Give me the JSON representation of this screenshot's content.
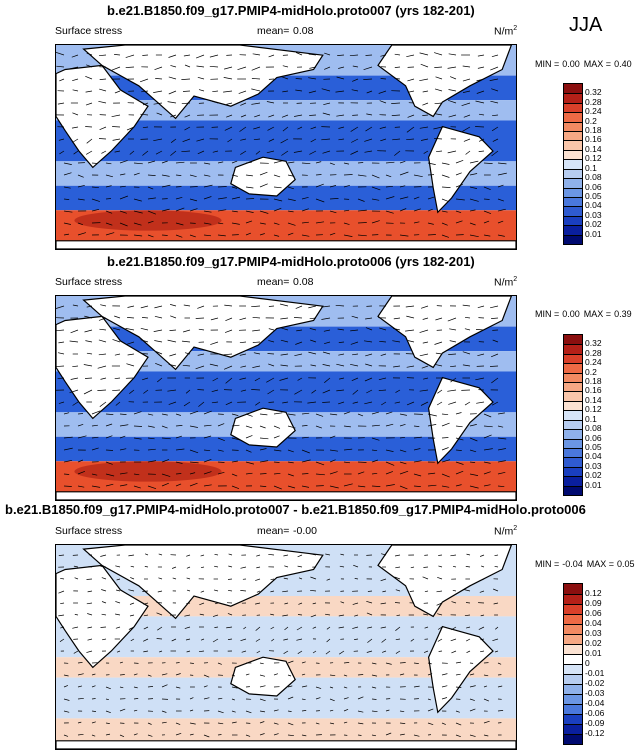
{
  "season": "JJA",
  "panels": [
    {
      "title": "b.e21.B1850.f09_g17.PMIP4-midHolo.proto007 (yrs 182-201)",
      "variable": "Surface stress",
      "mean_label": "mean=",
      "mean_value": "0.08",
      "units_base": "N/m",
      "units_exp": "2",
      "min_label": "MIN =",
      "min_value": "0.00",
      "max_label": "MAX =",
      "max_value": "0.40",
      "levels": [
        "0.32",
        "0.28",
        "0.24",
        "0.2",
        "0.18",
        "0.16",
        "0.14",
        "0.12",
        "0.1",
        "0.08",
        "0.06",
        "0.05",
        "0.04",
        "0.03",
        "0.02",
        "0.01"
      ],
      "colors": [
        "#8b0f0f",
        "#b42018",
        "#d9402a",
        "#ee6a45",
        "#f28a62",
        "#f6a884",
        "#f9c6aa",
        "#fbe2d2",
        "#d6e4f7",
        "#b7cdf0",
        "#8fb1ea",
        "#6b96e4",
        "#4a78dc",
        "#2f5bd0",
        "#1a3fbf",
        "#0a1f9e",
        "#000a70"
      ],
      "fill": {
        "low": "#2a5fd8",
        "mid": "#9fbdf0",
        "high": "#e8502c",
        "peak": "#a61a10"
      }
    },
    {
      "title": "b.e21.B1850.f09_g17.PMIP4-midHolo.proto006 (yrs 182-201)",
      "variable": "Surface stress",
      "mean_label": "mean=",
      "mean_value": "0.08",
      "units_base": "N/m",
      "units_exp": "2",
      "min_label": "MIN =",
      "min_value": "0.00",
      "max_label": "MAX =",
      "max_value": "0.39",
      "levels": [
        "0.32",
        "0.28",
        "0.24",
        "0.2",
        "0.18",
        "0.16",
        "0.14",
        "0.12",
        "0.1",
        "0.08",
        "0.06",
        "0.05",
        "0.04",
        "0.03",
        "0.02",
        "0.01"
      ],
      "colors": [
        "#8b0f0f",
        "#b42018",
        "#d9402a",
        "#ee6a45",
        "#f28a62",
        "#f6a884",
        "#f9c6aa",
        "#fbe2d2",
        "#d6e4f7",
        "#b7cdf0",
        "#8fb1ea",
        "#6b96e4",
        "#4a78dc",
        "#2f5bd0",
        "#1a3fbf",
        "#0a1f9e",
        "#000a70"
      ],
      "fill": {
        "low": "#2a5fd8",
        "mid": "#9fbdf0",
        "high": "#e8502c",
        "peak": "#a61a10"
      }
    },
    {
      "title": "b.e21.B1850.f09_g17.PMIP4-midHolo.proto007 - b.e21.B1850.f09_g17.PMIP4-midHolo.proto006",
      "variable": "Surface stress",
      "mean_label": "mean=",
      "mean_value": "-0.00",
      "units_base": "N/m",
      "units_exp": "2",
      "min_label": "MIN =",
      "min_value": "-0.04",
      "max_label": "MAX =",
      "max_value": "0.05",
      "levels": [
        "0.12",
        "0.09",
        "0.06",
        "0.04",
        "0.03",
        "0.02",
        "0.01",
        "0",
        "-0.01",
        "-0.02",
        "-0.03",
        "-0.04",
        "-0.06",
        "-0.09",
        "-0.12"
      ],
      "colors": [
        "#8b0f0f",
        "#b42018",
        "#d9402a",
        "#ee6a45",
        "#f28a62",
        "#f6a884",
        "#fbe2d2",
        "#ffffff",
        "#d6e4f7",
        "#b7cdf0",
        "#8fb1ea",
        "#6b96e4",
        "#4a78dc",
        "#1a3fbf",
        "#0a1f9e",
        "#000a70"
      ],
      "fill": {
        "low": "#cfe0f6",
        "mid": "#ffffff",
        "high": "#f9d8c4",
        "peak": "#e8502c"
      }
    }
  ]
}
